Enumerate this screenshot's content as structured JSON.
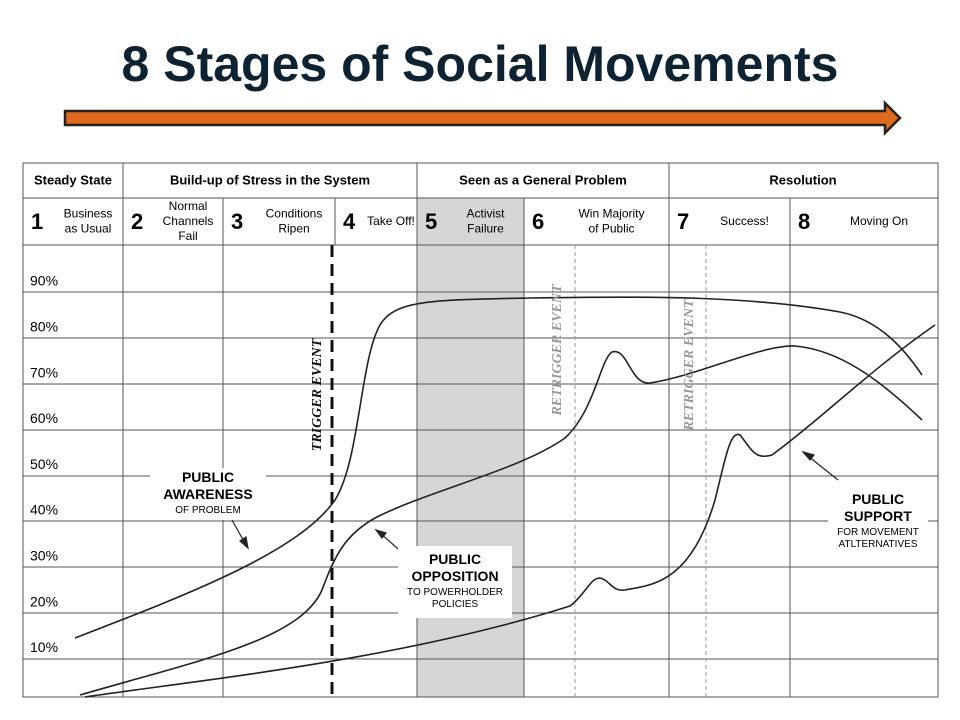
{
  "title": "8 Stages of Social Movements",
  "phases": [
    "Steady State",
    "Build-up of Stress in the System",
    "Seen as a General Problem",
    "Resolution"
  ],
  "stages": [
    {
      "number": "1",
      "label": "Business as Usual"
    },
    {
      "number": "2",
      "label": "Normal Channels Fail"
    },
    {
      "number": "3",
      "label": "Conditions Ripen"
    },
    {
      "number": "4",
      "label": "Take Off!"
    },
    {
      "number": "5",
      "label": "Activist Failure"
    },
    {
      "number": "6",
      "label": "Win Majority of Public"
    },
    {
      "number": "7",
      "label": "Success!"
    },
    {
      "number": "8",
      "label": "Moving On"
    }
  ],
  "y_labels": [
    "90%",
    "80%",
    "70%",
    "60%",
    "50%",
    "40%",
    "30%",
    "20%",
    "10%"
  ],
  "events": [
    "TRIGGER EVENT",
    "RETRIGGER EVENT",
    "RETRIGGER EVENT"
  ],
  "annotations": [
    {
      "title": "PUBLIC AWARENESS",
      "subtitle": "OF PROBLEM"
    },
    {
      "title": "PUBLIC OPPOSITION",
      "subtitle": "TO POWERHOLDER POLICIES"
    },
    {
      "title": "PUBLIC SUPPORT",
      "subtitle": "FOR MOVEMENT ATLTERNATIVES"
    }
  ]
}
